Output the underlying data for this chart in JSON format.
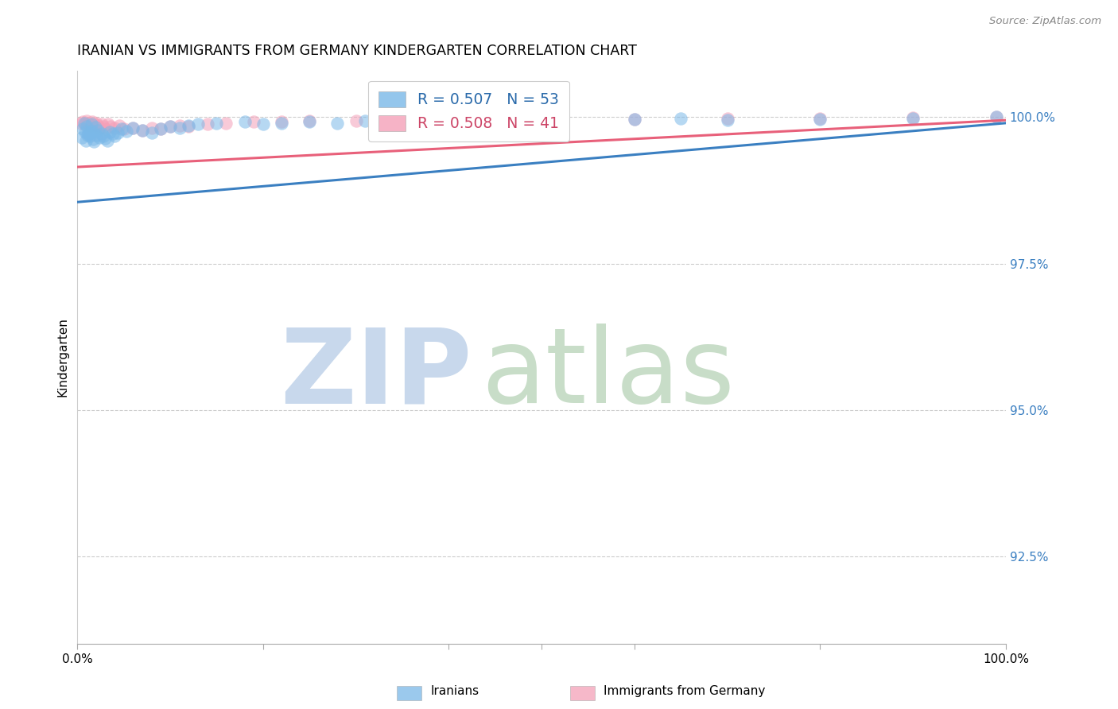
{
  "title": "IRANIAN VS IMMIGRANTS FROM GERMANY KINDERGARTEN CORRELATION CHART",
  "source": "Source: ZipAtlas.com",
  "ylabel": "Kindergarten",
  "ytick_labels": [
    "100.0%",
    "97.5%",
    "95.0%",
    "92.5%"
  ],
  "ytick_values": [
    1.0,
    0.975,
    0.95,
    0.925
  ],
  "xlim": [
    0.0,
    1.0
  ],
  "ylim": [
    0.91,
    1.008
  ],
  "color_iranian": "#7ab8e8",
  "color_germany": "#f4a0b8",
  "color_line_iranian": "#3a7fc1",
  "color_line_germany": "#e8607a",
  "watermark_zip": "ZIP",
  "watermark_atlas": "atlas",
  "watermark_color_zip": "#c8d8ec",
  "watermark_color_atlas": "#c8ddc8",
  "iranians_x": [
    0.005,
    0.006,
    0.007,
    0.008,
    0.009,
    0.01,
    0.011,
    0.012,
    0.013,
    0.014,
    0.015,
    0.016,
    0.017,
    0.018,
    0.019,
    0.02,
    0.022,
    0.024,
    0.026,
    0.028,
    0.03,
    0.032,
    0.035,
    0.038,
    0.04,
    0.043,
    0.048,
    0.053,
    0.06,
    0.07,
    0.08,
    0.09,
    0.1,
    0.11,
    0.12,
    0.13,
    0.15,
    0.18,
    0.2,
    0.22,
    0.25,
    0.28,
    0.31,
    0.35,
    0.4,
    0.45,
    0.5,
    0.6,
    0.65,
    0.7,
    0.8,
    0.9,
    0.99
  ],
  "iranians_y": [
    0.9965,
    0.998,
    0.999,
    0.9975,
    0.996,
    0.9985,
    0.997,
    0.9972,
    0.9968,
    0.9974,
    0.9988,
    0.9976,
    0.9962,
    0.9958,
    0.9983,
    0.997,
    0.9978,
    0.9966,
    0.9972,
    0.9968,
    0.9964,
    0.996,
    0.9975,
    0.9972,
    0.9968,
    0.9974,
    0.998,
    0.9976,
    0.9982,
    0.9978,
    0.9974,
    0.998,
    0.9984,
    0.9982,
    0.9986,
    0.9988,
    0.999,
    0.9992,
    0.9988,
    0.999,
    0.9992,
    0.999,
    0.9994,
    0.9992,
    0.9994,
    0.9996,
    0.9994,
    0.9996,
    0.9998,
    0.9995,
    0.9997,
    0.9998,
    1.0
  ],
  "germany_x": [
    0.004,
    0.006,
    0.008,
    0.01,
    0.012,
    0.014,
    0.016,
    0.018,
    0.02,
    0.022,
    0.024,
    0.026,
    0.028,
    0.03,
    0.033,
    0.036,
    0.04,
    0.045,
    0.05,
    0.06,
    0.07,
    0.08,
    0.09,
    0.1,
    0.11,
    0.12,
    0.14,
    0.16,
    0.19,
    0.22,
    0.25,
    0.3,
    0.35,
    0.4,
    0.45,
    0.5,
    0.6,
    0.7,
    0.8,
    0.9,
    0.99
  ],
  "germany_y": [
    0.999,
    0.9992,
    0.9988,
    0.9994,
    0.999,
    0.9986,
    0.9992,
    0.9988,
    0.999,
    0.9986,
    0.9982,
    0.9988,
    0.9984,
    0.998,
    0.9988,
    0.9984,
    0.9982,
    0.9986,
    0.998,
    0.9982,
    0.9978,
    0.9982,
    0.998,
    0.9984,
    0.9986,
    0.9984,
    0.9988,
    0.999,
    0.9992,
    0.9992,
    0.9994,
    0.9994,
    0.9996,
    0.9996,
    0.9996,
    0.9997,
    0.9997,
    0.9998,
    0.9998,
    0.9999,
    1.0
  ],
  "iran_line_x0": 0.0,
  "iran_line_y0": 0.9855,
  "iran_line_x1": 1.0,
  "iran_line_y1": 0.999,
  "germ_line_x0": 0.0,
  "germ_line_y0": 0.9915,
  "germ_line_x1": 1.0,
  "germ_line_y1": 0.9995
}
